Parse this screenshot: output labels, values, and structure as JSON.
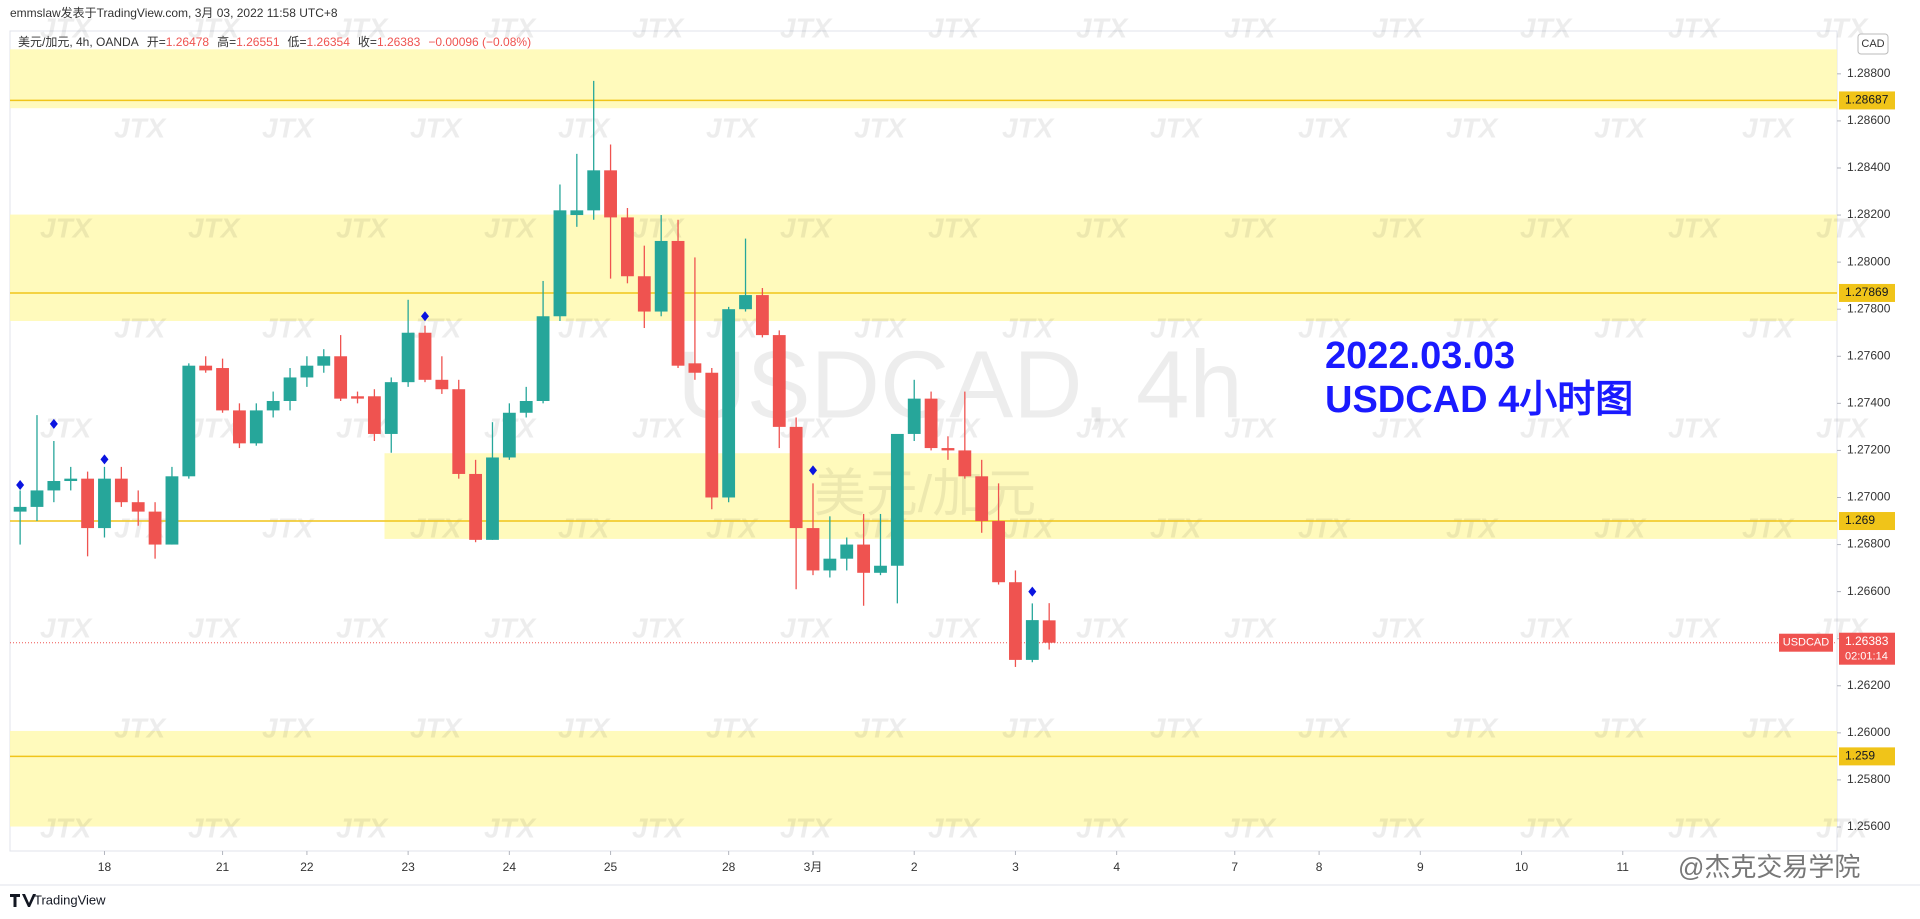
{
  "chart_data": {
    "type": "candlestick",
    "header": "emmslaw发表于TradingView.com, 3月 03, 2022 11:58 UTC+8",
    "symbol_info": "美元/加元, 4h, OANDA",
    "ohlc_labels": [
      "开=",
      "高=",
      "低=",
      "收="
    ],
    "change_label": "−0.00096 (−0.08%)",
    "title": "2022.03.03",
    "subtitle": "USDCAD 4小时图",
    "watermark": "USDCAD, 4h",
    "watermark_sub": "美元/加元",
    "currency": "CAD",
    "up_color": "#26a69a",
    "down_color": "#ef5350",
    "open": [
      1.2694,
      1.2696,
      1.2703,
      1.2707,
      1.2708,
      1.2687,
      1.2708,
      1.2698,
      1.2694,
      1.268,
      1.2709,
      1.2756,
      1.2755,
      1.2737,
      1.2723,
      1.2737,
      1.2741,
      1.2751,
      1.2756,
      1.276,
      1.2743,
      1.2743,
      1.2727,
      1.2749,
      1.277,
      1.275,
      1.2746,
      1.271,
      1.2682,
      1.2717,
      1.2736,
      1.2741,
      1.2777,
      1.282,
      1.2822,
      1.2839,
      1.2819,
      1.2794,
      1.2779,
      1.2809,
      1.2757,
      1.2753,
      1.27,
      1.278,
      1.2786,
      1.2769,
      1.273,
      1.2687,
      1.2669,
      1.2674,
      1.268,
      1.2668,
      1.2671,
      1.2727,
      1.2742,
      1.2721,
      1.272,
      1.2709,
      1.269,
      1.2664,
      1.2631,
      1.26478
    ],
    "high": [
      1.2703,
      1.2735,
      1.2724,
      1.2713,
      1.2711,
      1.2713,
      1.2713,
      1.2703,
      1.2698,
      1.2713,
      1.2757,
      1.276,
      1.2759,
      1.274,
      1.274,
      1.2745,
      1.2755,
      1.276,
      1.2763,
      1.2769,
      1.2745,
      1.2746,
      1.2751,
      1.2784,
      1.2773,
      1.276,
      1.275,
      1.2716,
      1.2732,
      1.274,
      1.2747,
      1.2792,
      1.2833,
      1.2846,
      1.2877,
      1.285,
      1.2823,
      1.2807,
      1.282,
      1.2818,
      1.2802,
      1.2755,
      1.2781,
      1.281,
      1.2789,
      1.2771,
      1.2734,
      1.2706,
      1.2692,
      1.2683,
      1.2693,
      1.2693,
      1.2727,
      1.275,
      1.2745,
      1.2726,
      1.2745,
      1.2716,
      1.2706,
      1.2669,
      1.2655,
      1.26551
    ],
    "low": [
      1.268,
      1.269,
      1.2698,
      1.2703,
      1.2675,
      1.2683,
      1.2696,
      1.2688,
      1.2674,
      1.268,
      1.2708,
      1.2753,
      1.2736,
      1.2721,
      1.2722,
      1.2734,
      1.2737,
      1.2747,
      1.2753,
      1.2741,
      1.274,
      1.2724,
      1.2719,
      1.2747,
      1.2749,
      1.2744,
      1.2708,
      1.2681,
      1.2682,
      1.2716,
      1.2734,
      1.274,
      1.2775,
      1.2815,
      1.2818,
      1.2793,
      1.2791,
      1.2772,
      1.2777,
      1.2755,
      1.275,
      1.2695,
      1.2698,
      1.2779,
      1.2768,
      1.2721,
      1.2661,
      1.2667,
      1.2666,
      1.2669,
      1.2654,
      1.2667,
      1.2655,
      1.2724,
      1.272,
      1.2716,
      1.2708,
      1.2685,
      1.2663,
      1.2628,
      1.263,
      1.26354
    ],
    "close": [
      1.2696,
      1.2703,
      1.2707,
      1.2708,
      1.2687,
      1.2708,
      1.2698,
      1.2694,
      1.268,
      1.2709,
      1.2756,
      1.2754,
      1.2737,
      1.2723,
      1.2737,
      1.2741,
      1.2751,
      1.2756,
      1.276,
      1.2742,
      1.2742,
      1.2727,
      1.2749,
      1.277,
      1.275,
      1.2746,
      1.271,
      1.2682,
      1.2717,
      1.2736,
      1.2741,
      1.2777,
      1.2822,
      1.2822,
      1.2839,
      1.2819,
      1.2794,
      1.2779,
      1.2809,
      1.2756,
      1.2753,
      1.27,
      1.278,
      1.2786,
      1.2769,
      1.273,
      1.2687,
      1.2669,
      1.2674,
      1.268,
      1.2668,
      1.2671,
      1.2727,
      1.2742,
      1.2721,
      1.272,
      1.2709,
      1.269,
      1.2664,
      1.2631,
      1.26479,
      1.26383
    ],
    "xlim": [
      -0.6,
      107.7
    ],
    "xticks": [
      {
        "value": 5,
        "label": "18"
      },
      {
        "value": 12,
        "label": "21"
      },
      {
        "value": 17,
        "label": "22"
      },
      {
        "value": 23,
        "label": "23"
      },
      {
        "value": 29,
        "label": "24"
      },
      {
        "value": 35,
        "label": "25"
      },
      {
        "value": 42,
        "label": "28"
      },
      {
        "value": 47,
        "label": "3月"
      },
      {
        "value": 53,
        "label": "2"
      },
      {
        "value": 59,
        "label": "3"
      },
      {
        "value": 65,
        "label": "4"
      },
      {
        "value": 72,
        "label": "7"
      },
      {
        "value": 77,
        "label": "8"
      },
      {
        "value": 83,
        "label": "9"
      },
      {
        "value": 89,
        "label": "10"
      },
      {
        "value": 95,
        "label": "11"
      }
    ],
    "ylim": [
      1.25498,
      1.28982
    ],
    "yticks": [
      {
        "value": 1.256,
        "label": "1.25600"
      },
      {
        "value": 1.258,
        "label": "1.25800"
      },
      {
        "value": 1.26,
        "label": "1.26000"
      },
      {
        "value": 1.262,
        "label": "1.26200"
      },
      {
        "value": 1.264,
        "label": "1.26400"
      },
      {
        "value": 1.266,
        "label": "1.26600"
      },
      {
        "value": 1.268,
        "label": "1.26800"
      },
      {
        "value": 1.27,
        "label": "1.27000"
      },
      {
        "value": 1.272,
        "label": "1.27200"
      },
      {
        "value": 1.274,
        "label": "1.27400"
      },
      {
        "value": 1.276,
        "label": "1.27600"
      },
      {
        "value": 1.278,
        "label": "1.27800"
      },
      {
        "value": 1.28,
        "label": "1.28000"
      },
      {
        "value": 1.282,
        "label": "1.28200"
      },
      {
        "value": 1.284,
        "label": "1.28400"
      },
      {
        "value": 1.286,
        "label": "1.28600"
      },
      {
        "value": 1.288,
        "label": "1.28800"
      }
    ],
    "zones": [
      {
        "top": 1.28904,
        "bottom": 1.28654,
        "line": 1.28687,
        "x_from": -0.6
      },
      {
        "top": 1.28202,
        "bottom": 1.2775,
        "line": 1.27869,
        "x_from": -0.6
      },
      {
        "top": 1.27188,
        "bottom": 1.26824,
        "line": 1.269,
        "x_from": 21.6
      },
      {
        "top": 1.26008,
        "bottom": 1.25602,
        "line": 1.259,
        "x_from": -0.6
      }
    ],
    "zone_color": "#fff9b0",
    "zone_line_color": "#f0c419",
    "signals": {
      "x": [
        0,
        2,
        5,
        24,
        47,
        60
      ],
      "values": [
        1.27053,
        1.27313,
        1.27162,
        1.2777,
        1.27115,
        1.266
      ],
      "color": "#0a14e0"
    },
    "last_price": {
      "symbol": "USDCAD",
      "value": 1.26383,
      "countdown": "02:01:14",
      "color": "#ef5350"
    },
    "brand": "TradingView",
    "credit": "@杰克交易学院",
    "logo_watermark": "JTX"
  }
}
